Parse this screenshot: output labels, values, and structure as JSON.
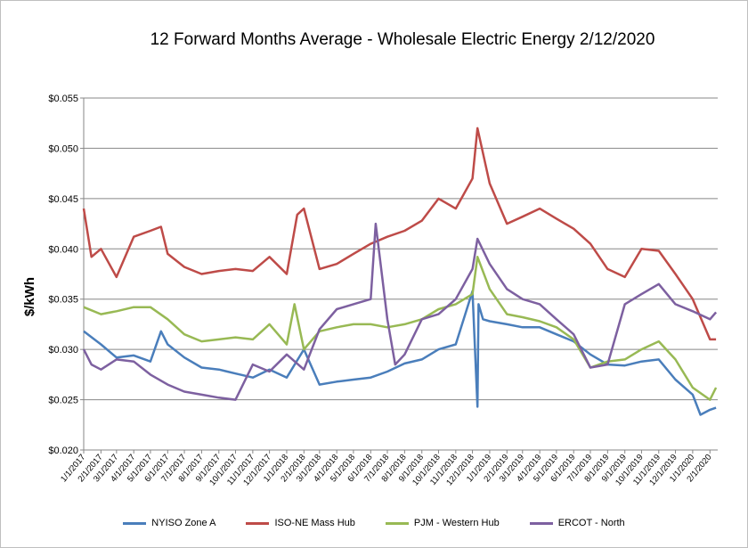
{
  "chart_data": {
    "type": "line",
    "title": "12 Forward Months Average - Wholesale Electric Energy 2/12/2020",
    "ylabel": "$/kWh",
    "xlabel": "",
    "ylim": [
      0.02,
      0.055
    ],
    "yticks": [
      "$0.020",
      "$0.025",
      "$0.030",
      "$0.035",
      "$0.040",
      "$0.045",
      "$0.050",
      "$0.055"
    ],
    "ytick_values": [
      0.02,
      0.025,
      0.03,
      0.035,
      0.04,
      0.045,
      0.05,
      0.055
    ],
    "xticks": [
      "1/1/2017",
      "2/1/2017",
      "3/1/2017",
      "4/1/2017",
      "5/1/2017",
      "6/1/2017",
      "7/1/2017",
      "8/1/2017",
      "9/1/2017",
      "10/1/2017",
      "11/1/2017",
      "12/1/2017",
      "1/1/2018",
      "2/1/2018",
      "3/1/2018",
      "4/1/2018",
      "5/1/2018",
      "6/1/2018",
      "7/1/2018",
      "8/1/2018",
      "9/1/2018",
      "10/1/2018",
      "11/1/2018",
      "12/1/2018",
      "1/1/2019",
      "2/1/2019",
      "3/1/2019",
      "4/1/2019",
      "5/1/2019",
      "6/1/2019",
      "7/1/2019",
      "8/1/2019",
      "9/1/2019",
      "10/1/2019",
      "11/1/2019",
      "12/1/2019",
      "1/1/2020",
      "2/1/2020"
    ],
    "grid": true,
    "legend_position": "bottom",
    "series": [
      {
        "name": "NYISO Zone A",
        "color": "#4a7ebb",
        "x": [
          "1/1/2017",
          "2/1/2017",
          "3/1/2017",
          "4/1/2017",
          "5/1/2017",
          "5/20/2017",
          "6/1/2017",
          "7/1/2017",
          "8/1/2017",
          "9/1/2017",
          "10/1/2017",
          "11/1/2017",
          "12/1/2017",
          "1/1/2018",
          "2/1/2018",
          "3/1/2018",
          "4/1/2018",
          "5/1/2018",
          "6/1/2018",
          "7/1/2018",
          "8/1/2018",
          "9/1/2018",
          "10/1/2018",
          "11/1/2018",
          "12/1/2018",
          "12/10/2018",
          "12/12/2018",
          "12/20/2018",
          "1/1/2019",
          "2/1/2019",
          "3/1/2019",
          "4/1/2019",
          "5/1/2019",
          "6/1/2019",
          "7/1/2019",
          "8/1/2019",
          "9/1/2019",
          "10/1/2019",
          "11/1/2019",
          "12/1/2019",
          "1/1/2020",
          "1/15/2020",
          "2/1/2020",
          "2/12/2020"
        ],
        "values": [
          0.0318,
          0.0305,
          0.0292,
          0.0294,
          0.0288,
          0.0318,
          0.0305,
          0.0292,
          0.0282,
          0.028,
          0.0276,
          0.0272,
          0.028,
          0.0272,
          0.03,
          0.0265,
          0.0268,
          0.027,
          0.0272,
          0.0278,
          0.0286,
          0.029,
          0.03,
          0.0305,
          0.0358,
          0.0243,
          0.0345,
          0.033,
          0.0328,
          0.0325,
          0.0322,
          0.0322,
          0.0315,
          0.0308,
          0.0295,
          0.0285,
          0.0284,
          0.0288,
          0.029,
          0.027,
          0.0255,
          0.0235,
          0.024,
          0.0242
        ]
      },
      {
        "name": "ISO-NE Mass Hub",
        "color": "#be4b48",
        "x": [
          "1/1/2017",
          "1/15/2017",
          "2/1/2017",
          "3/1/2017",
          "4/1/2017",
          "5/1/2017",
          "5/20/2017",
          "6/1/2017",
          "7/1/2017",
          "8/1/2017",
          "9/1/2017",
          "10/1/2017",
          "11/1/2017",
          "12/1/2017",
          "1/1/2018",
          "1/20/2018",
          "2/1/2018",
          "3/1/2018",
          "4/1/2018",
          "5/1/2018",
          "6/1/2018",
          "7/1/2018",
          "8/1/2018",
          "9/1/2018",
          "10/1/2018",
          "11/1/2018",
          "12/1/2018",
          "12/10/2018",
          "1/1/2019",
          "2/1/2019",
          "3/1/2019",
          "4/1/2019",
          "5/1/2019",
          "6/1/2019",
          "7/1/2019",
          "8/1/2019",
          "9/1/2019",
          "10/1/2019",
          "11/1/2019",
          "12/1/2019",
          "1/1/2020",
          "2/1/2020",
          "2/12/2020"
        ],
        "values": [
          0.044,
          0.0392,
          0.04,
          0.0372,
          0.0412,
          0.0418,
          0.0422,
          0.0395,
          0.0382,
          0.0375,
          0.0378,
          0.038,
          0.0378,
          0.0392,
          0.0375,
          0.0434,
          0.044,
          0.038,
          0.0385,
          0.0395,
          0.0405,
          0.0412,
          0.0418,
          0.0428,
          0.045,
          0.044,
          0.047,
          0.052,
          0.0465,
          0.0425,
          0.0432,
          0.044,
          0.043,
          0.042,
          0.0405,
          0.038,
          0.0372,
          0.04,
          0.0398,
          0.0375,
          0.035,
          0.031,
          0.031
        ]
      },
      {
        "name": "PJM - Western Hub",
        "color": "#98b954",
        "x": [
          "1/1/2017",
          "2/1/2017",
          "3/1/2017",
          "4/1/2017",
          "5/1/2017",
          "6/1/2017",
          "7/1/2017",
          "8/1/2017",
          "9/1/2017",
          "10/1/2017",
          "11/1/2017",
          "12/1/2017",
          "1/1/2018",
          "1/15/2018",
          "2/1/2018",
          "3/1/2018",
          "4/1/2018",
          "5/1/2018",
          "6/1/2018",
          "7/1/2018",
          "8/1/2018",
          "9/1/2018",
          "10/1/2018",
          "11/1/2018",
          "12/1/2018",
          "12/10/2018",
          "1/1/2019",
          "2/1/2019",
          "3/1/2019",
          "4/1/2019",
          "5/1/2019",
          "6/1/2019",
          "7/1/2019",
          "8/1/2019",
          "9/1/2019",
          "10/1/2019",
          "11/1/2019",
          "12/1/2019",
          "1/1/2020",
          "2/1/2020",
          "2/12/2020"
        ],
        "values": [
          0.0342,
          0.0335,
          0.0338,
          0.0342,
          0.0342,
          0.033,
          0.0315,
          0.0308,
          0.031,
          0.0312,
          0.031,
          0.0325,
          0.0305,
          0.0345,
          0.03,
          0.0318,
          0.0322,
          0.0325,
          0.0325,
          0.0322,
          0.0325,
          0.033,
          0.034,
          0.0345,
          0.0355,
          0.0392,
          0.036,
          0.0335,
          0.0332,
          0.0328,
          0.0322,
          0.031,
          0.0282,
          0.0288,
          0.029,
          0.03,
          0.0308,
          0.029,
          0.0262,
          0.025,
          0.0262
        ]
      },
      {
        "name": "ERCOT - North",
        "color": "#7d60a0",
        "x": [
          "1/1/2017",
          "1/15/2017",
          "2/1/2017",
          "3/1/2017",
          "4/1/2017",
          "5/1/2017",
          "6/1/2017",
          "7/1/2017",
          "8/1/2017",
          "9/1/2017",
          "10/1/2017",
          "11/1/2017",
          "12/1/2017",
          "1/1/2018",
          "2/1/2018",
          "3/1/2018",
          "4/1/2018",
          "5/1/2018",
          "6/1/2018",
          "6/10/2018",
          "7/1/2018",
          "7/15/2018",
          "8/1/2018",
          "9/1/2018",
          "10/1/2018",
          "11/1/2018",
          "12/1/2018",
          "12/10/2018",
          "1/1/2019",
          "2/1/2019",
          "3/1/2019",
          "4/1/2019",
          "5/1/2019",
          "6/1/2019",
          "7/1/2019",
          "8/1/2019",
          "9/1/2019",
          "10/1/2019",
          "11/1/2019",
          "12/1/2019",
          "1/1/2020",
          "2/1/2020",
          "2/12/2020"
        ],
        "values": [
          0.03,
          0.0285,
          0.028,
          0.029,
          0.0288,
          0.0275,
          0.0265,
          0.0258,
          0.0255,
          0.0252,
          0.025,
          0.0285,
          0.0278,
          0.0295,
          0.028,
          0.032,
          0.034,
          0.0345,
          0.035,
          0.0425,
          0.033,
          0.0285,
          0.0295,
          0.033,
          0.0335,
          0.035,
          0.038,
          0.041,
          0.0385,
          0.036,
          0.035,
          0.0345,
          0.033,
          0.0315,
          0.0282,
          0.0285,
          0.0345,
          0.0355,
          0.0365,
          0.0345,
          0.0338,
          0.033,
          0.0337
        ]
      }
    ]
  }
}
